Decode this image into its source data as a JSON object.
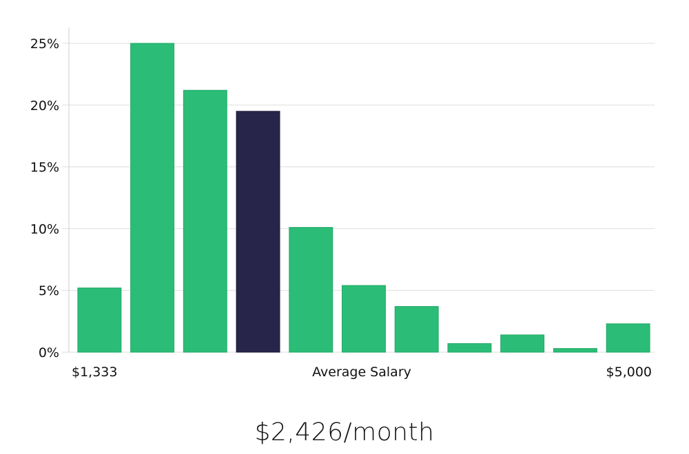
{
  "chart_data": {
    "type": "bar",
    "categories": [
      "1",
      "2",
      "3",
      "4",
      "5",
      "6",
      "7",
      "8",
      "9",
      "10",
      "11"
    ],
    "values": [
      5.2,
      25.0,
      21.2,
      19.5,
      10.1,
      5.4,
      3.7,
      0.7,
      1.4,
      0.3,
      2.3
    ],
    "highlight_index": 3,
    "ylim": [
      0,
      25
    ],
    "yticks": [
      0,
      5,
      10,
      15,
      20,
      25
    ],
    "ytick_labels": [
      "0%",
      "5%",
      "10%",
      "15%",
      "20%",
      "25%"
    ],
    "grid": true,
    "x_start_label": "$1,333",
    "x_end_label": "$5,000",
    "xlabel": "Average Salary",
    "colors": {
      "bar": "#2bbd77",
      "highlight": "#28254a",
      "grid": "#dddddd",
      "axis": "#cccccc",
      "text": "#111111"
    }
  },
  "summary": {
    "salary": "$2,426/month"
  }
}
